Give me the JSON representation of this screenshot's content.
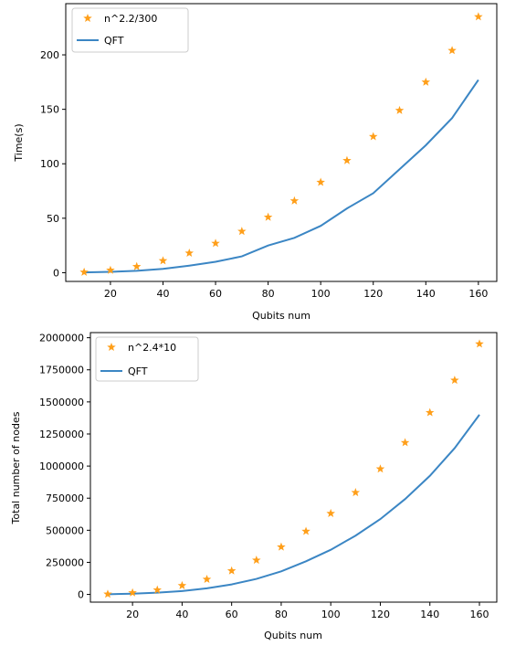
{
  "chart_data": [
    {
      "type": "scatter+line",
      "x": [
        10,
        20,
        30,
        40,
        50,
        60,
        70,
        80,
        90,
        100,
        110,
        120,
        130,
        140,
        150,
        160
      ],
      "series": [
        {
          "name": "n^2.2/300",
          "kind": "scatter",
          "marker": "star",
          "color": "#ff9f1a",
          "values": [
            0.5,
            2.3,
            5.7,
            11,
            18,
            27,
            38,
            51,
            66,
            83,
            103,
            125,
            149,
            175,
            204,
            235
          ]
        },
        {
          "name": "QFT",
          "kind": "line",
          "color": "#3b86c4",
          "values": [
            0.3,
            0.8,
            1.8,
            3.5,
            6.5,
            10,
            15,
            25,
            32,
            43,
            59,
            73,
            95,
            117,
            142,
            177
          ]
        }
      ],
      "xlabel": "Qubits num",
      "ylabel": "Time(s)",
      "xlim": [
        3,
        167
      ],
      "ylim": [
        -8,
        247
      ],
      "xticks": [
        20,
        40,
        60,
        80,
        100,
        120,
        140,
        160
      ],
      "yticks": [
        0,
        50,
        100,
        150,
        200
      ],
      "ytick_labels": [
        "0",
        "50",
        "100",
        "150",
        "200"
      ],
      "legend": "top-left",
      "grid": false
    },
    {
      "type": "scatter+line",
      "x": [
        10,
        20,
        30,
        40,
        50,
        60,
        70,
        80,
        90,
        100,
        110,
        120,
        130,
        140,
        150,
        160
      ],
      "series": [
        {
          "name": "n^2.4*10",
          "kind": "scatter",
          "marker": "star",
          "color": "#ff9f1a",
          "values": [
            2500,
            13000,
            35000,
            69000,
            118000,
            184000,
            267000,
            370000,
            492000,
            631000,
            794000,
            978000,
            1183000,
            1417000,
            1669000,
            1952000
          ]
        },
        {
          "name": "QFT",
          "kind": "line",
          "color": "#3b86c4",
          "values": [
            1500,
            6000,
            14000,
            26000,
            48000,
            78000,
            121000,
            180000,
            258000,
            348000,
            458000,
            587000,
            743000,
            924000,
            1140000,
            1400000
          ]
        }
      ],
      "xlabel": "Qubits num",
      "ylabel": "Total number of nodes",
      "xlim": [
        3,
        167
      ],
      "ylim": [
        -60000,
        2040000
      ],
      "xticks": [
        20,
        40,
        60,
        80,
        100,
        120,
        140,
        160
      ],
      "yticks": [
        0,
        250000,
        500000,
        750000,
        1000000,
        1250000,
        1500000,
        1750000,
        2000000
      ],
      "ytick_labels": [
        "0",
        "250000",
        "500000",
        "750000",
        "1000000",
        "1250000",
        "1500000",
        "1750000",
        "2000000"
      ],
      "legend": "top-left",
      "grid": false
    }
  ]
}
